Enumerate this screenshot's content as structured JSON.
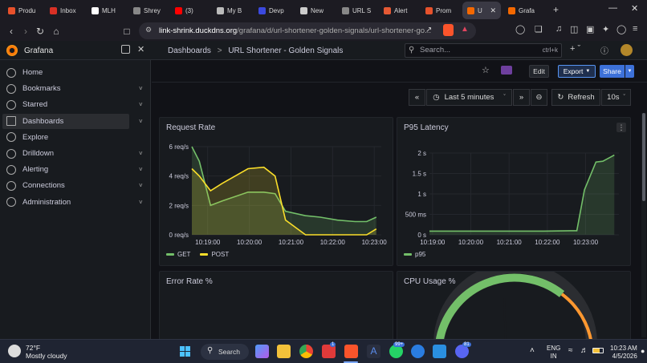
{
  "browser": {
    "tabs": [
      {
        "label": "Produ",
        "color": "#e8512b"
      },
      {
        "label": "Inbox",
        "color": "#d93025"
      },
      {
        "label": "MLH",
        "color": "#ffffff"
      },
      {
        "label": "Shrey",
        "color": "#888888"
      },
      {
        "label": "(3)",
        "color": "#ff0000"
      },
      {
        "label": "My B",
        "color": "#bbbbbb"
      },
      {
        "label": "Devp",
        "color": "#3b49df"
      },
      {
        "label": "New",
        "color": "#cccccc"
      },
      {
        "label": "URL S",
        "color": "#888888"
      },
      {
        "label": "Alert",
        "color": "#e55934"
      },
      {
        "label": "Prom",
        "color": "#e6522c"
      },
      {
        "label": "U",
        "color": "#f46800",
        "active": true
      },
      {
        "label": "Grafa",
        "color": "#f46800"
      }
    ],
    "url_host": "link-shrink.duckdns.org",
    "url_path": "/grafana/d/url-shortener-golden-signals/url-shortener-go..."
  },
  "grafana": {
    "app_title": "Grafana",
    "breadcrumb_root": "Dashboards",
    "breadcrumb_sep": ">",
    "dashboard_title": "URL Shortener - Golden Signals",
    "search_placeholder": "Search...",
    "search_shortcut": "ctrl+k",
    "edit_label": "Edit",
    "export_label": "Export",
    "share_label": "Share",
    "time_range": "Last 5 minutes",
    "refresh_label": "Refresh",
    "refresh_interval": "10s"
  },
  "sidebar": {
    "items": [
      {
        "label": "Home",
        "has_chevron": false
      },
      {
        "label": "Bookmarks",
        "has_chevron": true
      },
      {
        "label": "Starred",
        "has_chevron": true
      },
      {
        "label": "Dashboards",
        "has_chevron": true,
        "active": true
      },
      {
        "label": "Explore",
        "has_chevron": false
      },
      {
        "label": "Drilldown",
        "has_chevron": true
      },
      {
        "label": "Alerting",
        "has_chevron": true
      },
      {
        "label": "Connections",
        "has_chevron": true
      },
      {
        "label": "Administration",
        "has_chevron": true
      }
    ]
  },
  "panels": {
    "request_rate": {
      "title": "Request Rate"
    },
    "p95_latency": {
      "title": "P95 Latency"
    },
    "error_rate": {
      "title": "Error Rate %"
    },
    "cpu_usage": {
      "title": "CPU Usage %"
    }
  },
  "chart_data": [
    {
      "type": "area",
      "title": "Request Rate",
      "x_ticks": [
        "10:19:00",
        "10:20:00",
        "10:21:00",
        "10:22:00",
        "10:23:00"
      ],
      "y_ticks": [
        "0 req/s",
        "2 req/s",
        "4 req/s",
        "6 req/s"
      ],
      "ylim": [
        0,
        6
      ],
      "x_minutes": [
        0,
        0.18,
        0.45,
        0.73,
        1.35,
        1.73,
        2.0,
        2.25,
        2.73,
        3.08,
        3.5,
        3.92,
        4.2,
        4.43
      ],
      "series": [
        {
          "name": "GET",
          "color": "#73bf69",
          "values": [
            6.0,
            5.0,
            2.0,
            2.3,
            2.9,
            2.9,
            2.8,
            1.6,
            1.3,
            1.2,
            1.0,
            0.9,
            0.9,
            1.2
          ]
        },
        {
          "name": "POST",
          "color": "#fade2a",
          "values": [
            4.5,
            4.0,
            3.0,
            3.5,
            4.5,
            4.6,
            4.0,
            1.0,
            0.0,
            0.0,
            0.0,
            0.0,
            0.0,
            0.4
          ]
        }
      ],
      "legend": "bottom-left"
    },
    {
      "type": "area",
      "title": "P95 Latency",
      "x_ticks": [
        "10:19:00",
        "10:20:00",
        "10:21:00",
        "10:22:00",
        "10:23:00"
      ],
      "y_ticks": [
        "0 s",
        "500 ms",
        "1 s",
        "1.5 s",
        "2 s"
      ],
      "ylim": [
        0,
        2
      ],
      "x_minutes": [
        0,
        1.0,
        2.0,
        3.0,
        3.7,
        3.85,
        4.05,
        4.35,
        4.53,
        4.83
      ],
      "series": [
        {
          "name": "p95",
          "color": "#73bf69",
          "values": [
            0.09,
            0.09,
            0.09,
            0.09,
            0.1,
            0.1,
            1.1,
            1.78,
            1.8,
            1.95
          ]
        }
      ],
      "legend": "bottom-left"
    }
  ],
  "cpu_gauge": {
    "color_ok": "#73bf69",
    "color_warn": "#ff9830"
  },
  "taskbar": {
    "temperature": "72°F",
    "weather": "Mostly cloudy",
    "search_label": "Search",
    "lang_top": "ENG",
    "lang_bottom": "IN",
    "time": "10:23 AM",
    "date": "4/5/2026",
    "badge_l": "1",
    "badge_wa": "99+",
    "badge_dc": "81"
  }
}
